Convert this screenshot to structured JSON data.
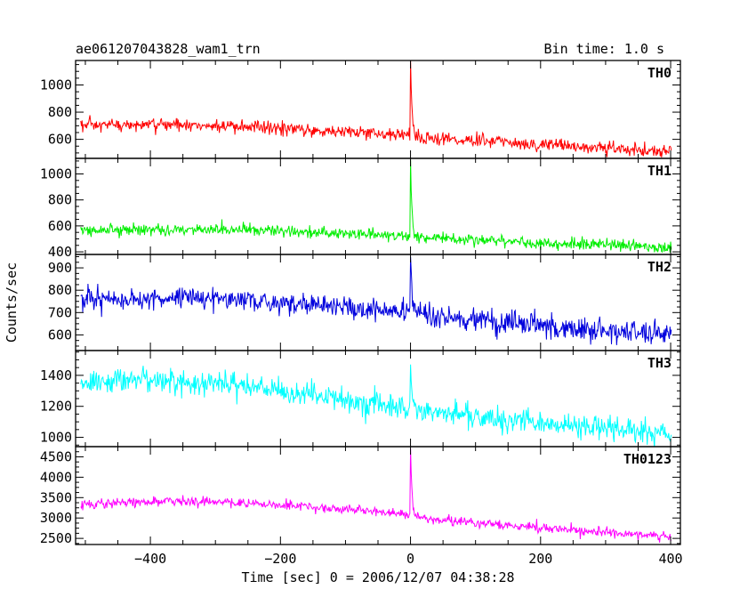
{
  "chart_data": {
    "type": "line",
    "title": "ae061207043828_wam1_trn",
    "bin_time_label": "Bin time: 1.0 s",
    "xlabel": "Time [sec] 0 = 2006/12/07 04:38:28",
    "ylabel": "Counts/sec",
    "xlim": [
      -515,
      415
    ],
    "x_ticks": [
      -400,
      -200,
      0,
      200,
      400
    ],
    "x_tick_labels": [
      "−400",
      "−200",
      "0",
      "200",
      "400"
    ],
    "bin_seconds": 1.0,
    "panels": [
      {
        "name": "TH0",
        "color": "#ff0000",
        "ylim": [
          460,
          1180
        ],
        "y_ticks": [
          600,
          800,
          1000
        ],
        "y_tick_labels": [
          "600",
          "800",
          "1000"
        ],
        "trend": [
          [
            -507,
            700
          ],
          [
            -400,
            705
          ],
          [
            -350,
            712
          ],
          [
            -300,
            695
          ],
          [
            -200,
            680
          ],
          [
            -100,
            655
          ],
          [
            -5,
            635
          ],
          [
            20,
            612
          ],
          [
            100,
            590
          ],
          [
            200,
            565
          ],
          [
            300,
            535
          ],
          [
            400,
            505
          ]
        ],
        "noise_sd": 25,
        "peak": {
          "x": 0,
          "y": 1180
        }
      },
      {
        "name": "TH1",
        "color": "#00ee00",
        "ylim": [
          380,
          1120
        ],
        "y_ticks": [
          400,
          600,
          800,
          1000
        ],
        "y_tick_labels": [
          "400",
          "600",
          "800",
          "1000"
        ],
        "trend": [
          [
            -507,
            560
          ],
          [
            -400,
            570
          ],
          [
            -300,
            575
          ],
          [
            -200,
            560
          ],
          [
            -100,
            540
          ],
          [
            -5,
            520
          ],
          [
            20,
            505
          ],
          [
            100,
            490
          ],
          [
            200,
            470
          ],
          [
            300,
            455
          ],
          [
            400,
            430
          ]
        ],
        "noise_sd": 22,
        "peak": {
          "x": 0,
          "y": 1110
        }
      },
      {
        "name": "TH2",
        "color": "#0000dd",
        "ylim": [
          530,
          960
        ],
        "y_ticks": [
          600,
          700,
          800,
          900
        ],
        "y_tick_labels": [
          "600",
          "700",
          "800",
          "900"
        ],
        "trend": [
          [
            -507,
            755
          ],
          [
            -400,
            760
          ],
          [
            -300,
            765
          ],
          [
            -250,
            760
          ],
          [
            -200,
            745
          ],
          [
            -100,
            720
          ],
          [
            -5,
            700
          ],
          [
            20,
            690
          ],
          [
            100,
            665
          ],
          [
            200,
            640
          ],
          [
            300,
            620
          ],
          [
            400,
            600
          ]
        ],
        "noise_sd": 25,
        "peak": {
          "x": 0,
          "y": 950
        }
      },
      {
        "name": "TH3",
        "color": "#00ffff",
        "ylim": [
          940,
          1560
        ],
        "y_ticks": [
          1000,
          1200,
          1400
        ],
        "y_tick_labels": [
          "1000",
          "1200",
          "1400"
        ],
        "trend": [
          [
            -507,
            1350
          ],
          [
            -400,
            1375
          ],
          [
            -300,
            1350
          ],
          [
            -200,
            1305
          ],
          [
            -100,
            1240
          ],
          [
            -5,
            1185
          ],
          [
            20,
            1170
          ],
          [
            100,
            1140
          ],
          [
            200,
            1090
          ],
          [
            300,
            1055
          ],
          [
            400,
            1030
          ]
        ],
        "noise_sd": 38,
        "peak": {
          "x": 0,
          "y": 1470
        }
      },
      {
        "name": "TH0123",
        "color": "#ff00ff",
        "ylim": [
          2350,
          4750
        ],
        "y_ticks": [
          2500,
          3000,
          3500,
          4000,
          4500
        ],
        "y_tick_labels": [
          "2500",
          "3000",
          "3500",
          "4000",
          "4500"
        ],
        "trend": [
          [
            -507,
            3330
          ],
          [
            -400,
            3400
          ],
          [
            -350,
            3410
          ],
          [
            -300,
            3400
          ],
          [
            -200,
            3320
          ],
          [
            -100,
            3200
          ],
          [
            -5,
            3100
          ],
          [
            20,
            2980
          ],
          [
            100,
            2880
          ],
          [
            200,
            2760
          ],
          [
            300,
            2640
          ],
          [
            400,
            2540
          ]
        ],
        "noise_sd": 55,
        "peak": {
          "x": 0,
          "y": 4700
        }
      }
    ]
  }
}
